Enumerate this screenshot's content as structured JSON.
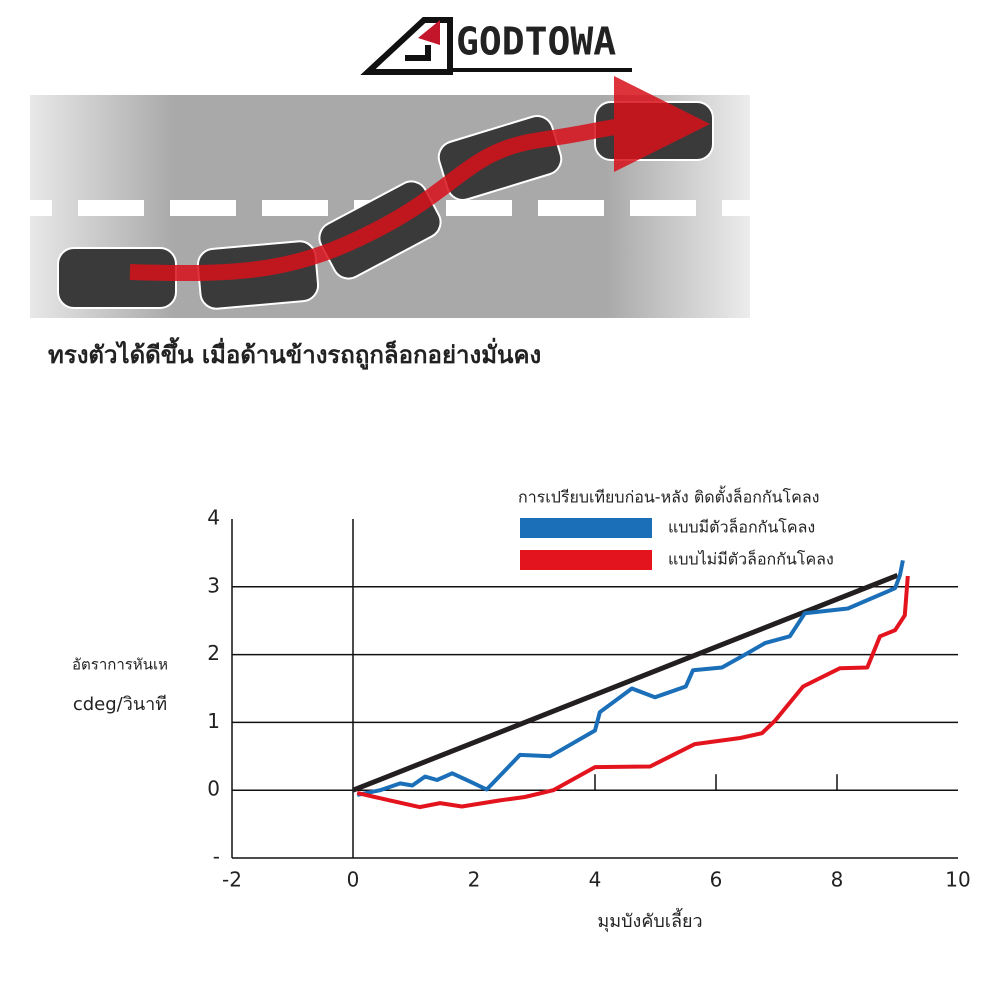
{
  "header": {
    "logo": "GODTOWA",
    "caption": "ทรงตัวได้ดีขึ้น เมื่อด้านข้างรถถูกล็อกอย่างมั่นคง"
  },
  "chart_data": {
    "type": "line",
    "legend_title": "การเปรียบเทียบก่อน-หลัง ติดตั้งล็อกกันโคลง",
    "y_label": [
      "อัตราการหันเห",
      "cdeg/วินาที"
    ],
    "x_label": "มุมบังคับเลี้ยว",
    "xlim": [
      -2,
      10
    ],
    "xticks": [
      -2,
      0,
      2,
      4,
      6,
      8,
      10
    ],
    "ylim": [
      -1,
      4
    ],
    "yticks": [
      {
        "value": -1,
        "label": "-"
      },
      0,
      1,
      2,
      3,
      4
    ],
    "grid": true,
    "series": [
      {
        "color": "#231f20",
        "x": [
          0,
          9.0
        ],
        "values": [
          0,
          3.17
        ]
      },
      {
        "name": "แบบมีตัวล็อกกันโคลง",
        "color": "#1a6fb8",
        "x": [
          0.07,
          0.45,
          0.78,
          0.98,
          1.19,
          1.39,
          1.64,
          1.93,
          2.21,
          2.76,
          3.26,
          4.0,
          4.08,
          4.61,
          4.99,
          5.5,
          5.62,
          6.1,
          6.48,
          6.81,
          7.22,
          7.47,
          8.18,
          8.96,
          9.04,
          9.09
        ],
        "values": [
          -0.07,
          0,
          0.1,
          0.07,
          0.2,
          0.15,
          0.25,
          0.13,
          0.01,
          0.52,
          0.5,
          0.88,
          1.15,
          1.5,
          1.37,
          1.53,
          1.77,
          1.81,
          2.0,
          2.17,
          2.27,
          2.61,
          2.68,
          2.98,
          3.17,
          3.39
        ]
      },
      {
        "name": "แบบไม่มีตัวล็อกกันโคลง",
        "color": "#e3141e",
        "x": [
          0.07,
          0.36,
          1.1,
          1.44,
          1.8,
          2.43,
          2.84,
          3.31,
          4.0,
          4.91,
          5.65,
          6.4,
          6.76,
          6.98,
          7.44,
          8.05,
          8.5,
          8.71,
          8.96,
          9.12,
          9.17
        ],
        "values": [
          -0.04,
          -0.1,
          -0.25,
          -0.19,
          -0.24,
          -0.15,
          -0.1,
          0,
          0.34,
          0.35,
          0.68,
          0.77,
          0.84,
          1.03,
          1.53,
          1.8,
          1.81,
          2.27,
          2.36,
          2.58,
          3.16
        ]
      }
    ]
  }
}
